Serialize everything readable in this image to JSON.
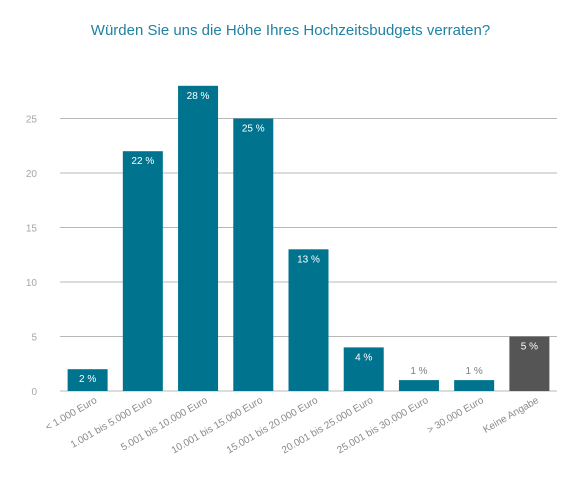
{
  "chart_data": {
    "type": "bar",
    "title": "Würden Sie uns die Höhe Ihres Hochzeitsbudgets verraten?",
    "categories": [
      "< 1.000 Euro",
      "1.001 bis 5.000 Euro",
      "5.001 bis 10.000 Euro",
      "10.001 bis 15.000 Euro",
      "15.001 bis 20.000 Euro",
      "20.001 bis 25.000 Euro",
      "25.001 bis 30.000 Euro",
      "> 30.000 Euro",
      "Keine Angabe"
    ],
    "values": [
      2,
      22,
      28,
      25,
      13,
      4,
      1,
      1,
      5
    ],
    "data_labels": [
      "2 %",
      "22 %",
      "28 %",
      "25 %",
      "13 %",
      "4 %",
      "1 %",
      "1 %",
      "5 %"
    ],
    "yticks": [
      0,
      5,
      10,
      15,
      20,
      25
    ],
    "ylim": [
      0,
      30
    ],
    "grid": true,
    "colors": {
      "bar": "#00748f",
      "highlight_bar": "#555555",
      "title": "#1f82a3",
      "label_inside": "#ffffff",
      "label_outside": "#7f7f7f"
    },
    "highlight_index": 8,
    "outside_label_indices": [
      6,
      7
    ]
  }
}
